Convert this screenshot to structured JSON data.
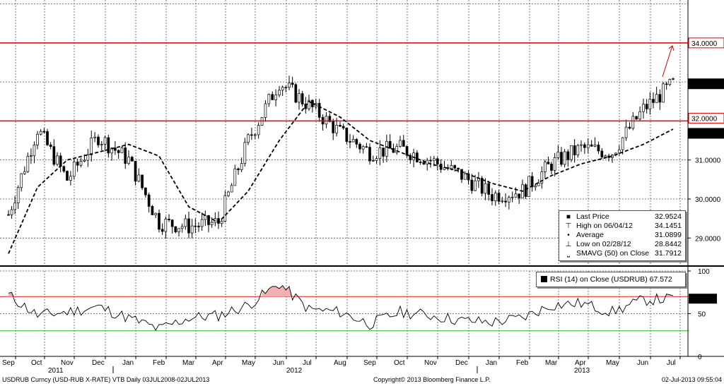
{
  "footer": {
    "left": "USDRUB Curncy (USD-RUB X-RATE) VTB  Daily 03JUL2008-02JUL2013",
    "center": "Copyright© 2013 Bloomberg Finance L.P.",
    "right": "02-Jul-2013 09:55:04"
  },
  "legend": {
    "items": [
      {
        "icon": "■",
        "label": "Last Price",
        "value": "32.9524"
      },
      {
        "icon": "⊤",
        "label": "High on 06/04/12",
        "value": "34.1451"
      },
      {
        "icon": "•",
        "label": "Average",
        "value": "31.0899"
      },
      {
        "icon": "⊥",
        "label": "Low on 02/28/12",
        "value": "28.8442"
      },
      {
        "icon": "⎵",
        "label": "SMAVG (50) on Close",
        "value": "31.7912"
      }
    ]
  },
  "rsi_legend": {
    "label": "RSI (14) on Close (USDRUB)",
    "value": "67.572"
  },
  "colors": {
    "price": "#000000",
    "sma": "#000000",
    "hline": "#dd0000",
    "rsi_over": "#e02020",
    "rsi_under": "#28b428",
    "rsi_fill": "#f2b0b0",
    "grid": "#555555"
  },
  "chart_data": [
    {
      "type": "candlestick",
      "series": [
        {
          "name": "USDRUB",
          "x": [
            "2011-09",
            "2011-10",
            "2011-11",
            "2011-12",
            "2012-01",
            "2012-02",
            "2012-03",
            "2012-04",
            "2012-05",
            "2012-06",
            "2012-07",
            "2012-08",
            "2012-09",
            "2012-10",
            "2012-11",
            "2012-12",
            "2013-01",
            "2013-02",
            "2013-03",
            "2013-04",
            "2013-05",
            "2013-06",
            "2013-07"
          ],
          "values": [
            29.6,
            31.8,
            30.5,
            31.6,
            31.0,
            29.4,
            29.3,
            29.4,
            31.5,
            33.0,
            32.4,
            31.7,
            31.2,
            31.3,
            31.0,
            30.6,
            30.1,
            30.2,
            30.9,
            31.3,
            31.2,
            32.3,
            32.95
          ]
        },
        {
          "name": "SMAVG (50)",
          "x": [
            "2011-09",
            "2011-10",
            "2011-11",
            "2011-12",
            "2012-01",
            "2012-02",
            "2012-03",
            "2012-04",
            "2012-05",
            "2012-06",
            "2012-07",
            "2012-08",
            "2012-09",
            "2012-10",
            "2012-11",
            "2012-12",
            "2013-01",
            "2013-02",
            "2013-03",
            "2013-04",
            "2013-05",
            "2013-06",
            "2013-07"
          ],
          "values": [
            28.6,
            30.3,
            31.0,
            31.2,
            31.4,
            31.1,
            29.8,
            29.4,
            30.2,
            31.5,
            32.5,
            32.1,
            31.5,
            31.2,
            30.9,
            30.7,
            30.4,
            30.2,
            30.6,
            30.9,
            31.1,
            31.4,
            31.79
          ]
        }
      ],
      "hlines": [
        34.0,
        32.0
      ],
      "value_labels": [
        "34.0000",
        "32.9524",
        "32.0000",
        "31.7912"
      ],
      "ylim": [
        28.3,
        35.1
      ],
      "yticks": [
        "31.0000",
        "30.0000",
        "29.0000"
      ],
      "xticks": [
        "Sep",
        "Oct",
        "Nov",
        "Dec",
        "Jan",
        "Feb",
        "Mar",
        "Apr",
        "May",
        "Jun",
        "Jul",
        "Aug",
        "Sep",
        "Oct",
        "Nov",
        "Dec",
        "Jan",
        "Feb",
        "Mar",
        "Apr",
        "May",
        "Jun",
        "Jul"
      ],
      "year_labels": [
        "2011",
        "2012",
        "2013"
      ],
      "grid": true
    },
    {
      "type": "line",
      "series": [
        {
          "name": "RSI (14) on Close (USDRUB)",
          "x": [
            "2011-09",
            "2011-10",
            "2011-11",
            "2011-12",
            "2012-01",
            "2012-02",
            "2012-03",
            "2012-04",
            "2012-05",
            "2012-06",
            "2012-07",
            "2012-08",
            "2012-09",
            "2012-10",
            "2012-11",
            "2012-12",
            "2013-01",
            "2013-02",
            "2013-03",
            "2013-04",
            "2013-05",
            "2013-06",
            "2013-07"
          ],
          "values": [
            72,
            48,
            52,
            58,
            45,
            32,
            45,
            48,
            60,
            85,
            55,
            52,
            38,
            52,
            48,
            42,
            40,
            45,
            60,
            62,
            52,
            66,
            67.572
          ]
        }
      ],
      "hlines": [
        70,
        30
      ],
      "value_labels": [
        "67.572"
      ],
      "ylim": [
        0,
        100
      ],
      "yticks": [
        "100",
        "50",
        "0"
      ]
    }
  ]
}
